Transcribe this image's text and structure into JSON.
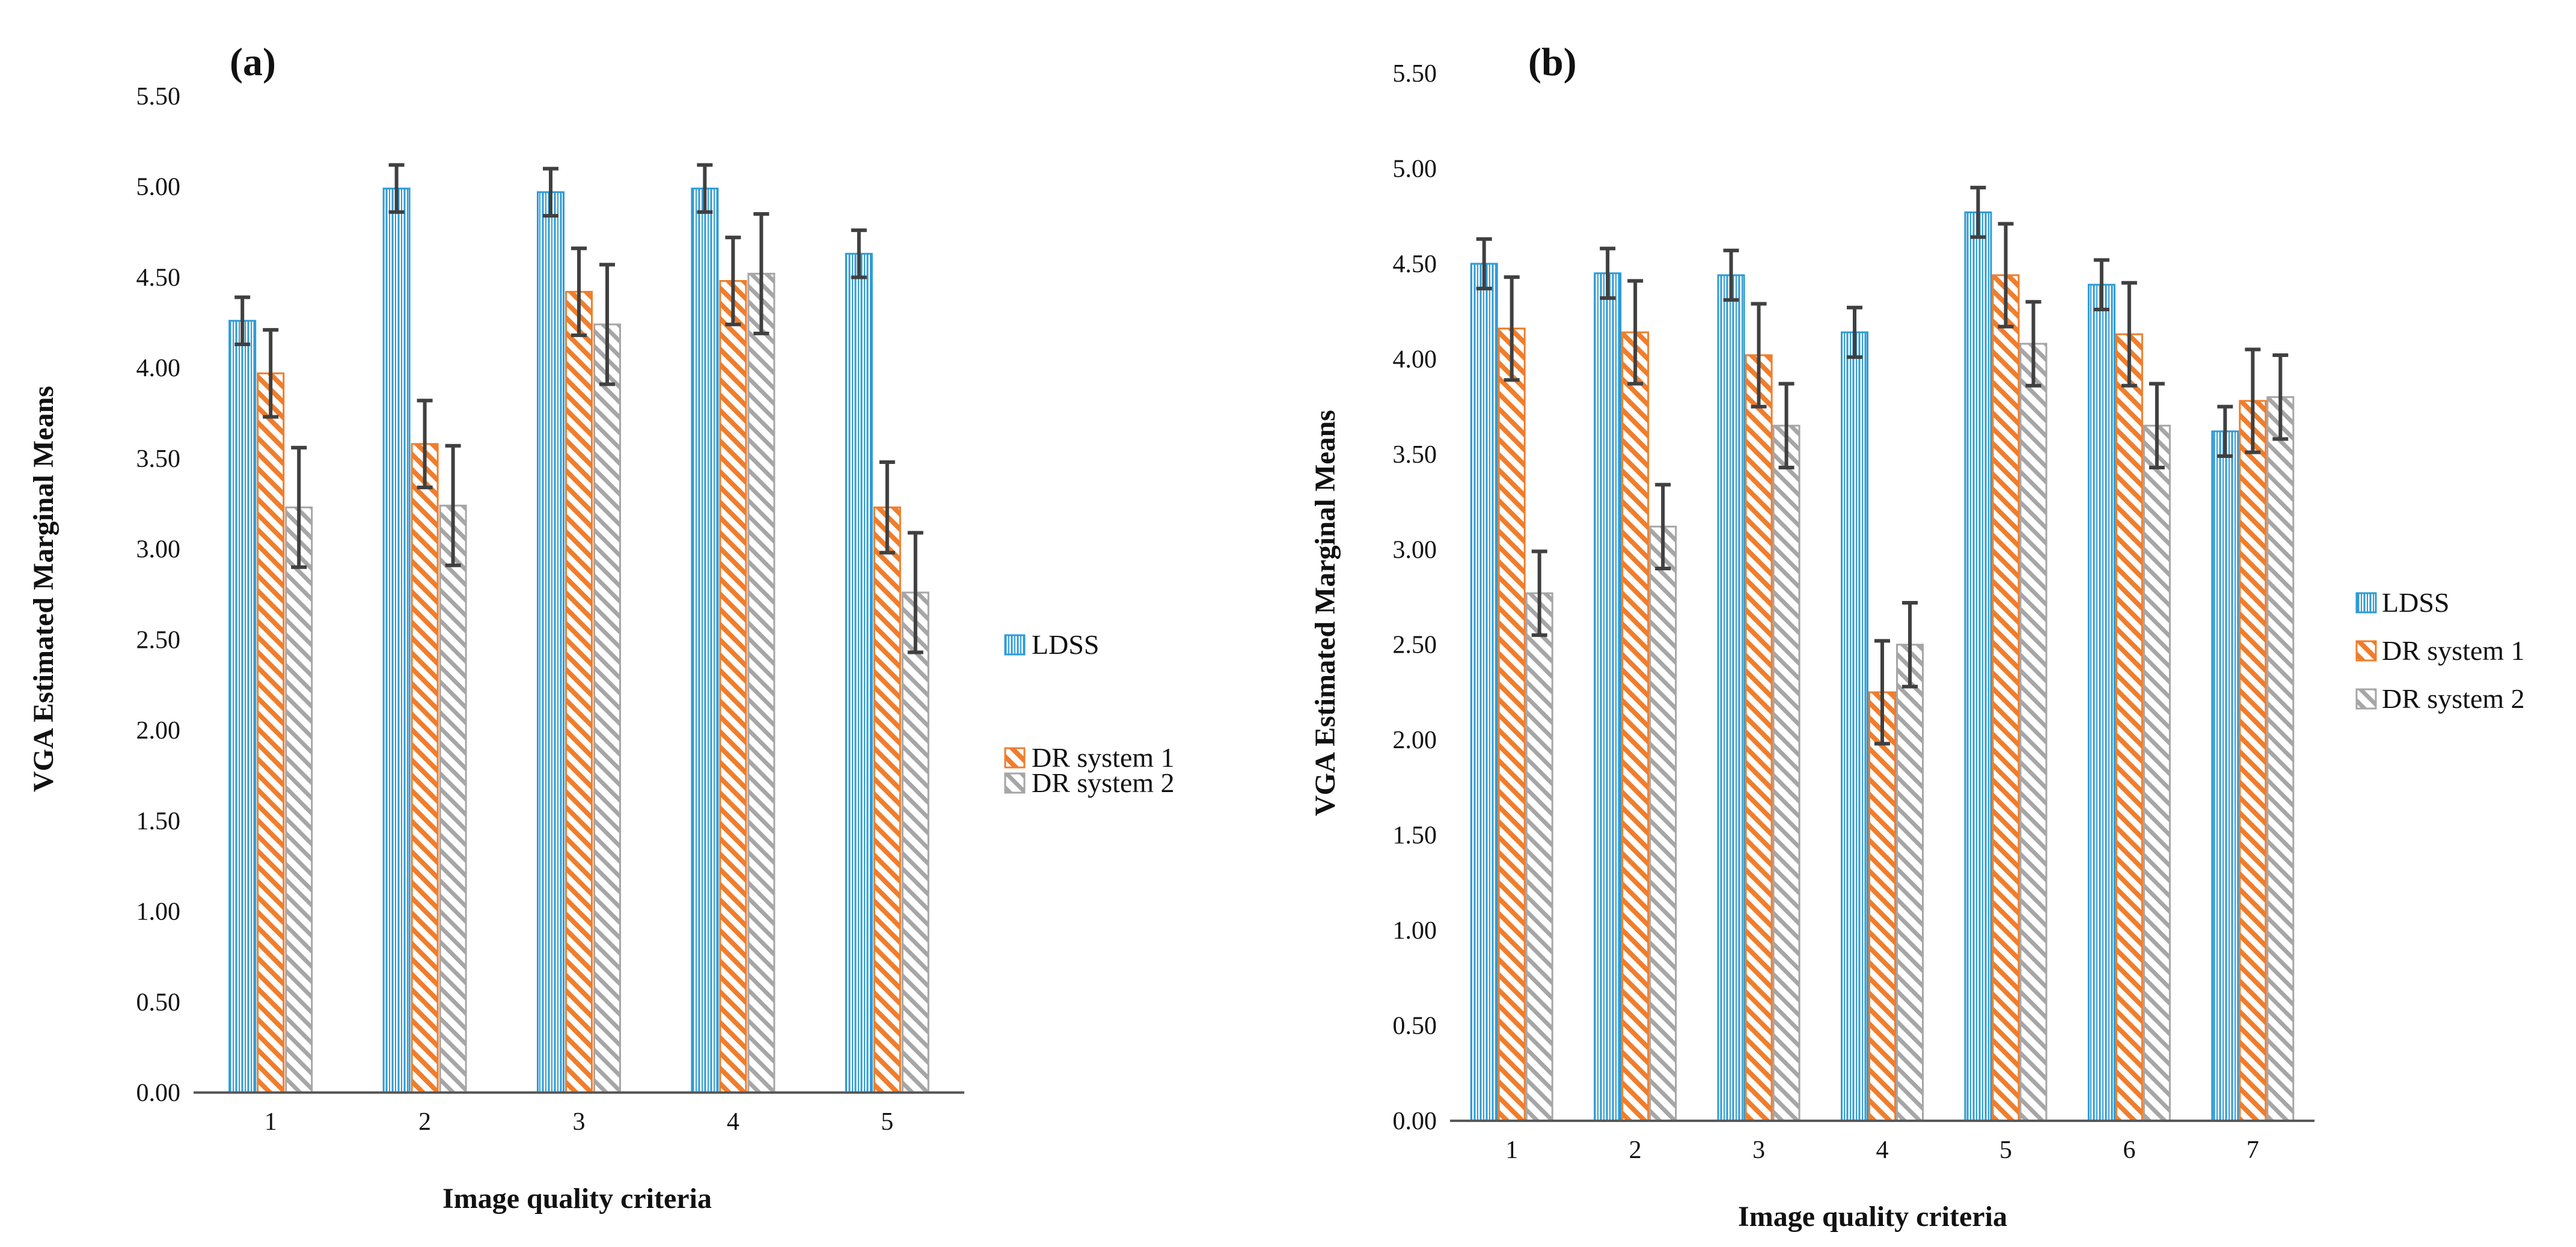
{
  "colors": {
    "LDSS": "#2e9bd6",
    "DR system 1": "#f07d2c",
    "DR system 2": "#a6a6a6",
    "errorbar": "#404040",
    "axis": "#595959"
  },
  "chart_data": [
    {
      "type": "bar",
      "panel_label": "(a)",
      "title": "",
      "xlabel": "Image quality criteria",
      "ylabel": "VGA Estimated Marginal Means",
      "ylim": [
        0,
        5.5
      ],
      "yticks": [
        "0.00",
        "0.50",
        "1.00",
        "1.50",
        "2.00",
        "2.50",
        "3.00",
        "3.50",
        "4.00",
        "4.50",
        "5.00",
        "5.50"
      ],
      "categories": [
        "1",
        "2",
        "3",
        "4",
        "5"
      ],
      "grid": false,
      "legend_position": "right",
      "series": [
        {
          "name": "LDSS",
          "values": [
            4.26,
            4.99,
            4.97,
            4.99,
            4.63
          ],
          "errors": [
            0.13,
            0.13,
            0.13,
            0.13,
            0.13
          ]
        },
        {
          "name": "DR system 1",
          "values": [
            3.97,
            3.58,
            4.42,
            4.48,
            3.23
          ],
          "errors": [
            0.24,
            0.24,
            0.24,
            0.24,
            0.25
          ]
        },
        {
          "name": "DR system 2",
          "values": [
            3.23,
            3.24,
            4.24,
            4.52,
            2.76
          ],
          "errors": [
            0.33,
            0.33,
            0.33,
            0.33,
            0.33
          ]
        }
      ]
    },
    {
      "type": "bar",
      "panel_label": "(b)",
      "title": "",
      "xlabel": "Image quality criteria",
      "ylabel": "VGA Estimated Marginal Means",
      "ylim": [
        0,
        5.5
      ],
      "yticks": [
        "0.00",
        "0.50",
        "1.00",
        "1.50",
        "2.00",
        "2.50",
        "3.00",
        "3.50",
        "4.00",
        "4.50",
        "5.00",
        "5.50"
      ],
      "categories": [
        "1",
        "2",
        "3",
        "4",
        "5",
        "6",
        "7"
      ],
      "grid": false,
      "legend_position": "right",
      "series": [
        {
          "name": "LDSS",
          "values": [
            4.5,
            4.45,
            4.44,
            4.14,
            4.77,
            4.39,
            3.62
          ],
          "errors": [
            0.13,
            0.13,
            0.13,
            0.13,
            0.13,
            0.13,
            0.13
          ]
        },
        {
          "name": "DR system 1",
          "values": [
            4.16,
            4.14,
            4.02,
            2.25,
            4.44,
            4.13,
            3.78
          ],
          "errors": [
            0.27,
            0.27,
            0.27,
            0.27,
            0.27,
            0.27,
            0.27
          ]
        },
        {
          "name": "DR system 2",
          "values": [
            2.77,
            3.12,
            3.65,
            2.5,
            4.08,
            3.65,
            3.8
          ],
          "errors": [
            0.22,
            0.22,
            0.22,
            0.22,
            0.22,
            0.22,
            0.22
          ]
        }
      ]
    }
  ]
}
